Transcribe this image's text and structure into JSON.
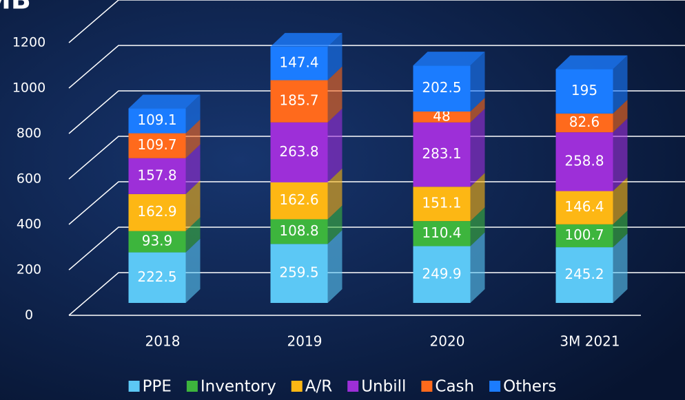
{
  "chart_data": {
    "type": "bar",
    "stacked": true,
    "three_d": true,
    "title": "MB",
    "categories": [
      "2018",
      "2019",
      "2020",
      "3M 2021"
    ],
    "series": [
      {
        "name": "PPE",
        "color": "#5cc8f5",
        "values": [
          222.5,
          259.5,
          249.9,
          245.2
        ]
      },
      {
        "name": "Inventory",
        "color": "#3db53d",
        "values": [
          93.9,
          108.8,
          110.4,
          100.7
        ]
      },
      {
        "name": "A/R",
        "color": "#fdb714",
        "values": [
          162.9,
          162.6,
          151.1,
          146.4
        ]
      },
      {
        "name": "Unbill",
        "color": "#9d2fd8",
        "values": [
          157.8,
          263.8,
          283.1,
          258.8
        ]
      },
      {
        "name": "Cash",
        "color": "#ff6a1c",
        "values": [
          109.7,
          185.7,
          48,
          82.6
        ]
      },
      {
        "name": "Others",
        "color": "#1b7cff",
        "values": [
          109.1,
          147.4,
          202.5,
          195
        ]
      }
    ],
    "ylim": [
      0,
      1200
    ],
    "yticks": [
      0,
      200,
      400,
      600,
      800,
      1000,
      1200
    ],
    "grid": true,
    "legend": "bottom"
  }
}
